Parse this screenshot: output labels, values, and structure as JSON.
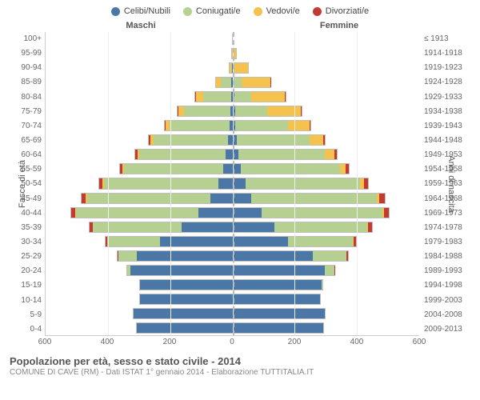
{
  "legend": [
    {
      "label": "Celibi/Nubili",
      "color": "#4b77a7"
    },
    {
      "label": "Coniugati/e",
      "color": "#b6d092"
    },
    {
      "label": "Vedovi/e",
      "color": "#f4c24d"
    },
    {
      "label": "Divorziati/e",
      "color": "#c13b33"
    }
  ],
  "headers": {
    "male": "Maschi",
    "female": "Femmine"
  },
  "axes": {
    "y_left_title": "Fasce di età",
    "y_right_title": "Anni di nascita",
    "x_max": 600,
    "x_ticks": [
      600,
      400,
      200,
      0,
      200,
      400,
      600
    ]
  },
  "colors": {
    "grid": "#eeeeee",
    "axis": "#cccccc",
    "center_dash": "#bbbbbb",
    "bg": "#ffffff",
    "text": "#555555",
    "bar_border": "rgba(0,0,0,0.25)"
  },
  "title": "Popolazione per età, sesso e stato civile - 2014",
  "subtitle": "COMUNE DI CAVE (RM) - Dati ISTAT 1° gennaio 2014 - Elaborazione TUTTITALIA.IT",
  "rows": [
    {
      "age": "100+",
      "year": "≤ 1913",
      "m": [
        0,
        0,
        1,
        0
      ],
      "f": [
        0,
        0,
        3,
        0
      ]
    },
    {
      "age": "95-99",
      "year": "1914-1918",
      "m": [
        0,
        0,
        3,
        0
      ],
      "f": [
        1,
        0,
        12,
        0
      ]
    },
    {
      "age": "90-94",
      "year": "1919-1923",
      "m": [
        1,
        3,
        8,
        0
      ],
      "f": [
        2,
        5,
        45,
        0
      ]
    },
    {
      "age": "85-89",
      "year": "1924-1928",
      "m": [
        3,
        35,
        18,
        0
      ],
      "f": [
        4,
        25,
        95,
        1
      ]
    },
    {
      "age": "80-84",
      "year": "1929-1933",
      "m": [
        5,
        90,
        25,
        1
      ],
      "f": [
        6,
        55,
        110,
        2
      ]
    },
    {
      "age": "75-79",
      "year": "1934-1938",
      "m": [
        7,
        150,
        20,
        2
      ],
      "f": [
        8,
        105,
        110,
        3
      ]
    },
    {
      "age": "70-74",
      "year": "1939-1943",
      "m": [
        10,
        195,
        12,
        3
      ],
      "f": [
        10,
        170,
        70,
        4
      ]
    },
    {
      "age": "65-69",
      "year": "1944-1948",
      "m": [
        15,
        240,
        10,
        5
      ],
      "f": [
        14,
        235,
        45,
        6
      ]
    },
    {
      "age": "60-64",
      "year": "1949-1953",
      "m": [
        22,
        280,
        6,
        6
      ],
      "f": [
        20,
        280,
        30,
        8
      ]
    },
    {
      "age": "55-59",
      "year": "1954-1958",
      "m": [
        30,
        320,
        5,
        8
      ],
      "f": [
        28,
        320,
        18,
        10
      ]
    },
    {
      "age": "50-54",
      "year": "1959-1963",
      "m": [
        45,
        370,
        4,
        12
      ],
      "f": [
        42,
        370,
        12,
        14
      ]
    },
    {
      "age": "45-49",
      "year": "1964-1968",
      "m": [
        70,
        400,
        3,
        15
      ],
      "f": [
        60,
        405,
        8,
        18
      ]
    },
    {
      "age": "40-44",
      "year": "1969-1973",
      "m": [
        110,
        395,
        2,
        14
      ],
      "f": [
        95,
        390,
        5,
        16
      ]
    },
    {
      "age": "35-39",
      "year": "1974-1978",
      "m": [
        165,
        285,
        1,
        10
      ],
      "f": [
        135,
        300,
        3,
        12
      ]
    },
    {
      "age": "30-34",
      "year": "1979-1983",
      "m": [
        235,
        170,
        0,
        6
      ],
      "f": [
        180,
        210,
        1,
        8
      ]
    },
    {
      "age": "25-29",
      "year": "1984-1988",
      "m": [
        310,
        60,
        0,
        2
      ],
      "f": [
        260,
        110,
        0,
        4
      ]
    },
    {
      "age": "20-24",
      "year": "1989-1993",
      "m": [
        330,
        10,
        0,
        0
      ],
      "f": [
        300,
        30,
        0,
        1
      ]
    },
    {
      "age": "15-19",
      "year": "1994-1998",
      "m": [
        300,
        0,
        0,
        0
      ],
      "f": [
        290,
        2,
        0,
        0
      ]
    },
    {
      "age": "10-14",
      "year": "1999-2003",
      "m": [
        300,
        0,
        0,
        0
      ],
      "f": [
        285,
        0,
        0,
        0
      ]
    },
    {
      "age": "5-9",
      "year": "2004-2008",
      "m": [
        320,
        0,
        0,
        0
      ],
      "f": [
        300,
        0,
        0,
        0
      ]
    },
    {
      "age": "0-4",
      "year": "2009-2013",
      "m": [
        310,
        0,
        0,
        0
      ],
      "f": [
        295,
        0,
        0,
        0
      ]
    }
  ]
}
